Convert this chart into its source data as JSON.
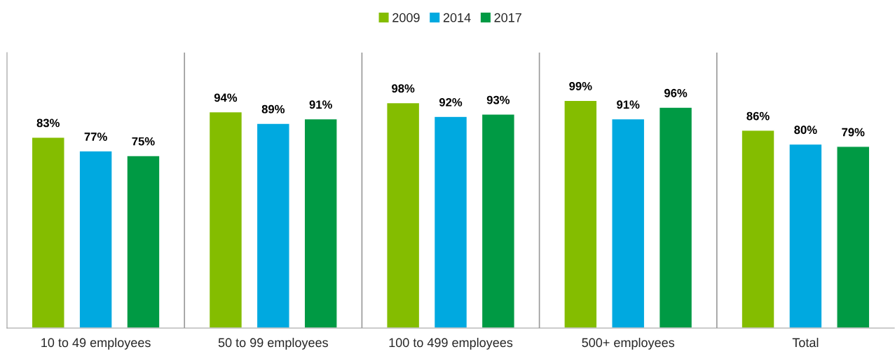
{
  "chart_data": {
    "type": "bar",
    "categories": [
      "10 to 49 employees",
      "50 to 99 employees",
      "100 to 499 employees",
      "500+ employees",
      "Total"
    ],
    "series": [
      {
        "name": "2009",
        "color": "#84bd00",
        "values": [
          83,
          94,
          98,
          99,
          86
        ],
        "value_labels": [
          "83%",
          "94%",
          "98%",
          "99%",
          "86%"
        ]
      },
      {
        "name": "2014",
        "color": "#00a9e0",
        "values": [
          77,
          89,
          92,
          91,
          80
        ],
        "value_labels": [
          "77%",
          "89%",
          "92%",
          "91%",
          "80%"
        ]
      },
      {
        "name": "2017",
        "color": "#009a44",
        "values": [
          75,
          91,
          93,
          96,
          79
        ],
        "value_labels": [
          "75%",
          "91%",
          "93%",
          "96%",
          "79%"
        ]
      }
    ],
    "tick_labels": "x",
    "grid": "x",
    "legend": "top"
  }
}
